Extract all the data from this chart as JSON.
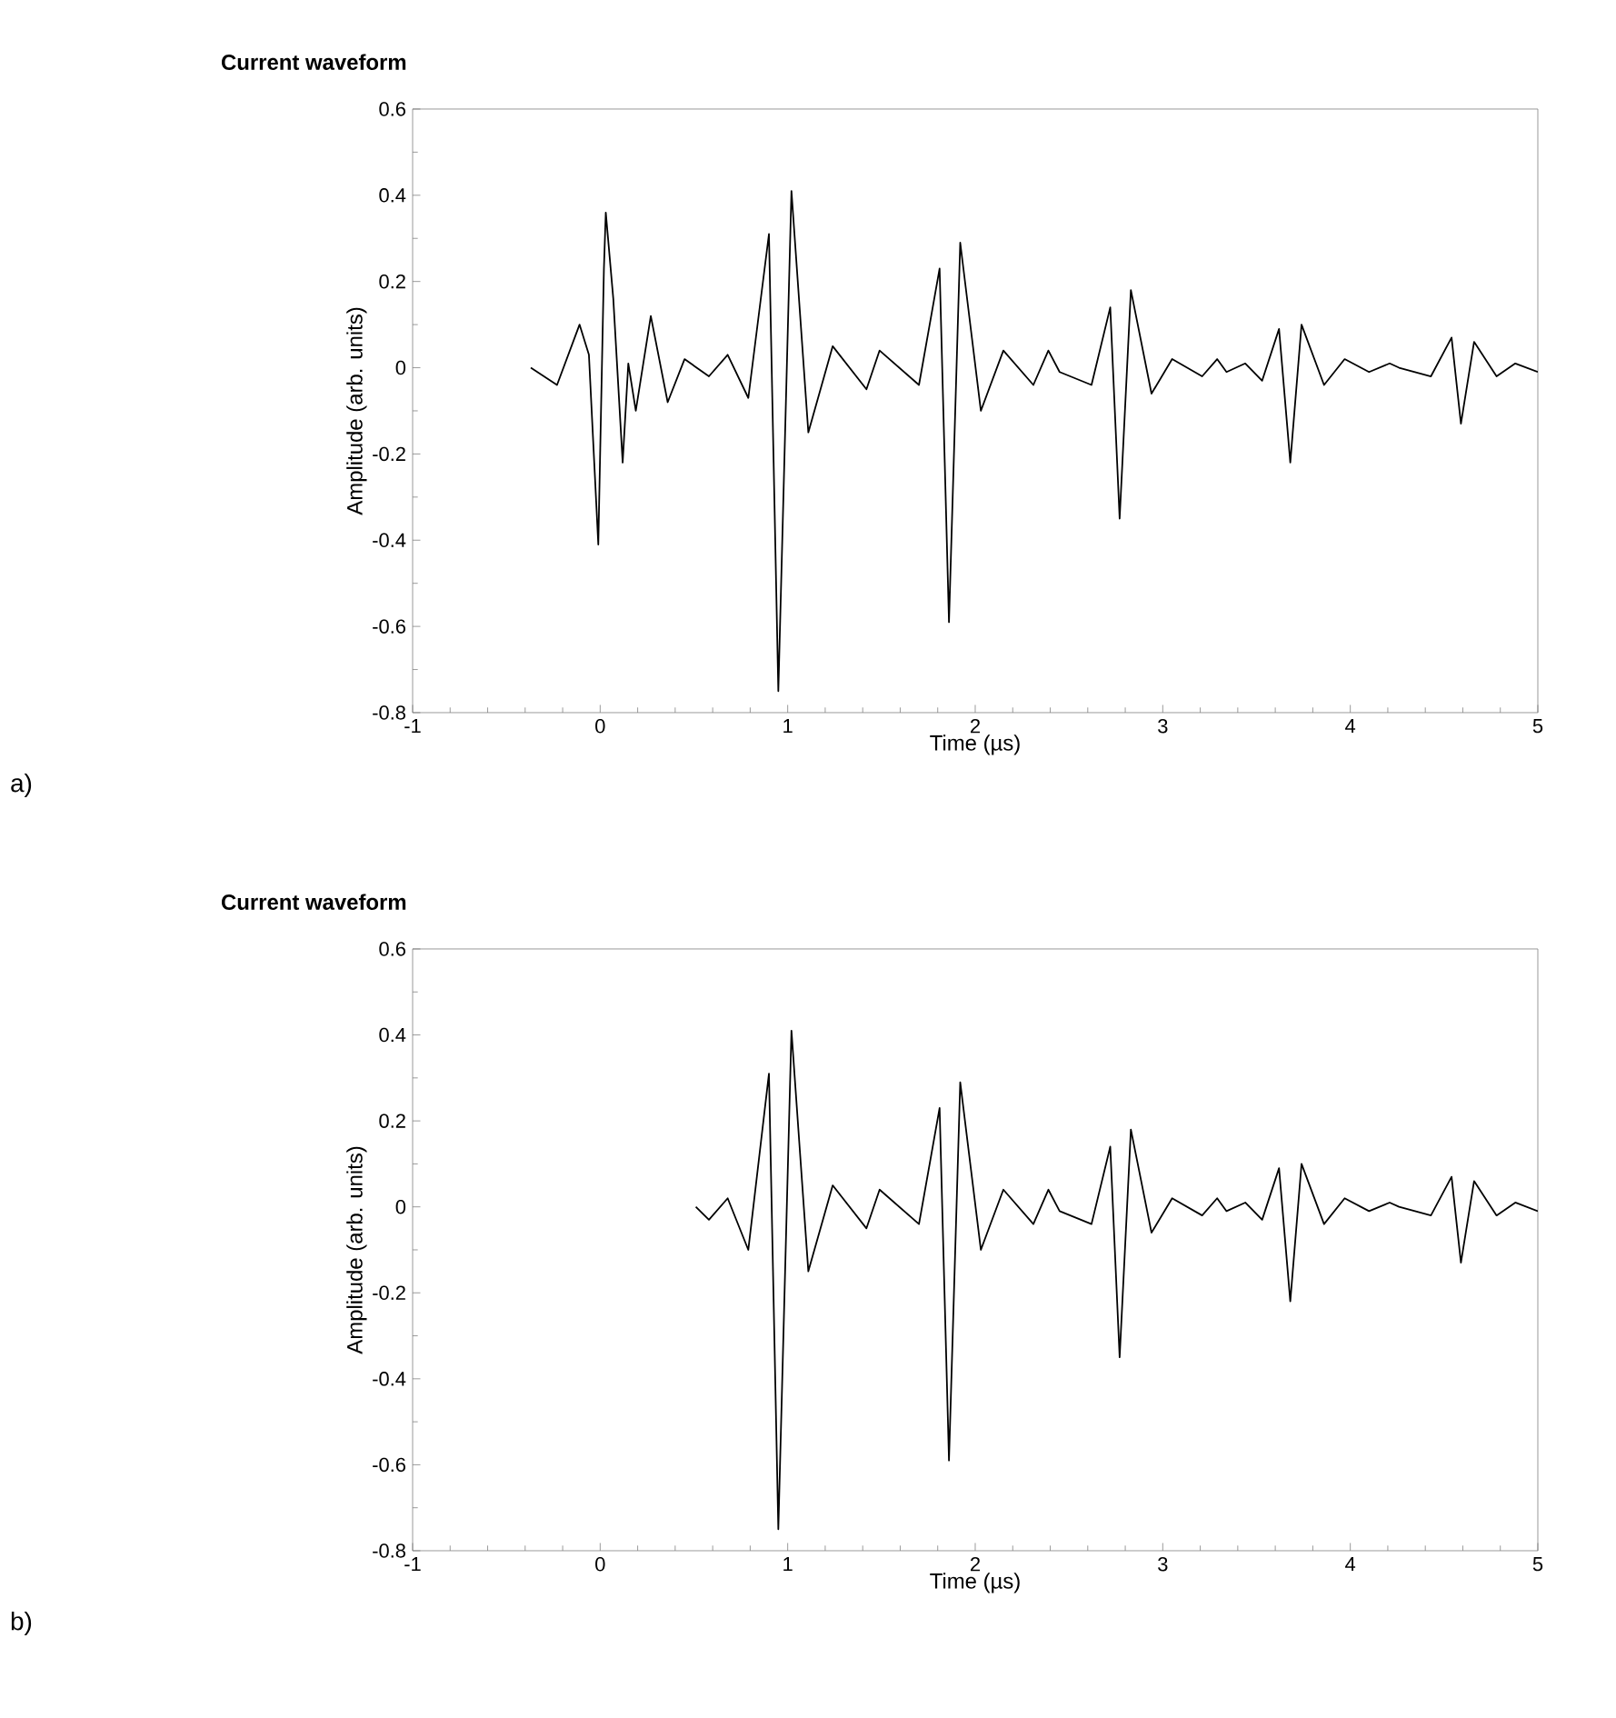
{
  "chart_data": [
    {
      "type": "line",
      "title": "Current waveform",
      "xlabel": "Time (µs)",
      "ylabel": "Amplitude (arb. units)",
      "annotations": [
        "a)"
      ],
      "x": [
        -0.37,
        -0.23,
        -0.11,
        -0.06,
        -0.01,
        0.02,
        0.03,
        0.07,
        0.12,
        0.15,
        0.19,
        0.27,
        0.36,
        0.45,
        0.58,
        0.68,
        0.79,
        0.9,
        0.95,
        1.02,
        1.11,
        1.24,
        1.42,
        1.49,
        1.7,
        1.81,
        1.86,
        1.92,
        2.03,
        2.15,
        2.31,
        2.39,
        2.45,
        2.62,
        2.72,
        2.77,
        2.83,
        2.94,
        3.05,
        3.21,
        3.29,
        3.34,
        3.44,
        3.53,
        3.62,
        3.68,
        3.74,
        3.86,
        3.97,
        4.1,
        4.21,
        4.26,
        4.43,
        4.54,
        4.59,
        4.66,
        4.78,
        4.88,
        5.0
      ],
      "values": [
        0.0,
        -0.04,
        0.1,
        0.03,
        -0.41,
        0.23,
        0.36,
        0.16,
        -0.22,
        0.01,
        -0.1,
        0.12,
        -0.08,
        0.02,
        -0.02,
        0.03,
        -0.07,
        0.31,
        -0.75,
        0.41,
        -0.15,
        0.05,
        -0.05,
        0.04,
        -0.04,
        0.23,
        -0.59,
        0.29,
        -0.1,
        0.04,
        -0.04,
        0.04,
        -0.01,
        -0.04,
        0.14,
        -0.35,
        0.18,
        -0.06,
        0.02,
        -0.02,
        0.02,
        -0.01,
        0.01,
        -0.03,
        0.09,
        -0.22,
        0.1,
        -0.04,
        0.02,
        -0.01,
        0.01,
        0.0,
        -0.02,
        0.07,
        -0.13,
        0.06,
        -0.02,
        0.01,
        -0.01
      ],
      "color": "#000000",
      "xlim": [
        -1,
        5
      ],
      "ylim": [
        -0.8,
        0.6
      ],
      "xticks": [
        -1,
        0,
        1,
        2,
        3,
        4,
        5
      ],
      "yticks": [
        -0.8,
        -0.6,
        -0.4,
        -0.2,
        0,
        0.2,
        0.4,
        0.6
      ]
    },
    {
      "type": "line",
      "title": "Current waveform",
      "xlabel": "Time (µs)",
      "ylabel": "Amplitude (arb. units)",
      "annotations": [
        "b)"
      ],
      "x": [
        0.51,
        0.58,
        0.68,
        0.79,
        0.9,
        0.95,
        1.02,
        1.11,
        1.24,
        1.42,
        1.49,
        1.7,
        1.81,
        1.86,
        1.92,
        2.03,
        2.15,
        2.31,
        2.39,
        2.45,
        2.62,
        2.72,
        2.77,
        2.83,
        2.94,
        3.05,
        3.21,
        3.29,
        3.34,
        3.44,
        3.53,
        3.62,
        3.68,
        3.74,
        3.86,
        3.97,
        4.1,
        4.21,
        4.26,
        4.43,
        4.54,
        4.59,
        4.66,
        4.78,
        4.88,
        5.0
      ],
      "values": [
        0.0,
        -0.03,
        0.02,
        -0.1,
        0.31,
        -0.75,
        0.41,
        -0.15,
        0.05,
        -0.05,
        0.04,
        -0.04,
        0.23,
        -0.59,
        0.29,
        -0.1,
        0.04,
        -0.04,
        0.04,
        -0.01,
        -0.04,
        0.14,
        -0.35,
        0.18,
        -0.06,
        0.02,
        -0.02,
        0.02,
        -0.01,
        0.01,
        -0.03,
        0.09,
        -0.22,
        0.1,
        -0.04,
        0.02,
        -0.01,
        0.01,
        0.0,
        -0.02,
        0.07,
        -0.13,
        0.06,
        -0.02,
        0.01,
        -0.01
      ],
      "color": "#000000",
      "xlim": [
        -1,
        5
      ],
      "ylim": [
        -0.8,
        0.6
      ],
      "xticks": [
        -1,
        0,
        1,
        2,
        3,
        4,
        5
      ],
      "yticks": [
        -0.8,
        -0.6,
        -0.4,
        -0.2,
        0,
        0.2,
        0.4,
        0.6
      ]
    }
  ]
}
